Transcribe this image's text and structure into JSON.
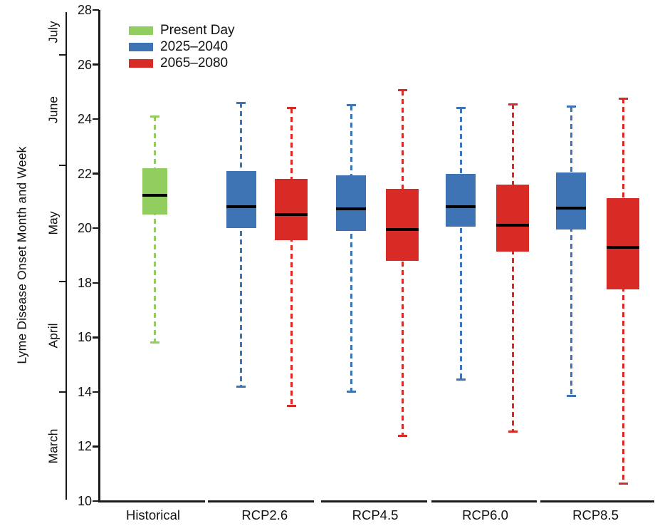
{
  "figure": {
    "background": "#ffffff",
    "colors": {
      "present": "#92cd60",
      "near_future": "#3e73b4",
      "far_future": "#d92b26",
      "median": "#000000",
      "axis": "#1a1a1a"
    },
    "legend": [
      {
        "label": "Present Day",
        "color_key": "present"
      },
      {
        "label": "2025–2040",
        "color_key": "near_future"
      },
      {
        "label": "2065–2080",
        "color_key": "far_future"
      }
    ],
    "month_axis": {
      "boundary_weeks": [
        26.35,
        22.3,
        18.05,
        14.0
      ],
      "labels": [
        {
          "name": "July",
          "center_week": 27.2
        },
        {
          "name": "June",
          "center_week": 24.35
        },
        {
          "name": "May",
          "center_week": 20.2
        },
        {
          "name": "April",
          "center_week": 16.05
        },
        {
          "name": "March",
          "center_week": 12.0
        }
      ]
    }
  },
  "chart_data": {
    "type": "box",
    "title": "",
    "xlabel": "",
    "ylabel": "Lyme Disease Onset Month and Week",
    "ylim": [
      10,
      28
    ],
    "yticks": [
      28,
      26,
      24,
      22,
      20,
      18,
      16,
      14,
      12,
      10
    ],
    "grid": false,
    "legend_position": "top-left",
    "groups": [
      {
        "label": "Historical",
        "boxes": [
          {
            "series": "Present Day",
            "color_key": "present",
            "whisker_low": 15.8,
            "q1": 20.5,
            "median": 21.2,
            "q3": 22.2,
            "whisker_high": 24.1
          }
        ]
      },
      {
        "label": "RCP2.6",
        "boxes": [
          {
            "series": "2025–2040",
            "color_key": "near_future",
            "whisker_low": 14.2,
            "q1": 20.0,
            "median": 20.8,
            "q3": 22.1,
            "whisker_high": 24.6
          },
          {
            "series": "2065–2080",
            "color_key": "far_future",
            "whisker_low": 13.5,
            "q1": 19.55,
            "median": 20.5,
            "q3": 21.8,
            "whisker_high": 24.4
          }
        ]
      },
      {
        "label": "RCP4.5",
        "boxes": [
          {
            "series": "2025–2040",
            "color_key": "near_future",
            "whisker_low": 14.0,
            "q1": 19.9,
            "median": 20.7,
            "q3": 21.95,
            "whisker_high": 24.5
          },
          {
            "series": "2065–2080",
            "color_key": "far_future",
            "whisker_low": 12.4,
            "q1": 18.8,
            "median": 19.95,
            "q3": 21.45,
            "whisker_high": 25.05
          }
        ]
      },
      {
        "label": "RCP6.0",
        "boxes": [
          {
            "series": "2025–2040",
            "color_key": "near_future",
            "whisker_low": 14.45,
            "q1": 20.05,
            "median": 20.8,
            "q3": 22.0,
            "whisker_high": 24.4
          },
          {
            "series": "2065–2080",
            "color_key": "far_future",
            "whisker_low": 12.55,
            "q1": 19.15,
            "median": 20.1,
            "q3": 21.6,
            "whisker_high": 24.55
          }
        ]
      },
      {
        "label": "RCP8.5",
        "boxes": [
          {
            "series": "2025–2040",
            "color_key": "near_future",
            "whisker_low": 13.85,
            "q1": 19.95,
            "median": 20.75,
            "q3": 22.05,
            "whisker_high": 24.45
          },
          {
            "series": "2065–2080",
            "color_key": "far_future",
            "whisker_low": 10.65,
            "q1": 17.75,
            "median": 19.3,
            "q3": 21.1,
            "whisker_high": 24.75
          }
        ]
      }
    ]
  }
}
